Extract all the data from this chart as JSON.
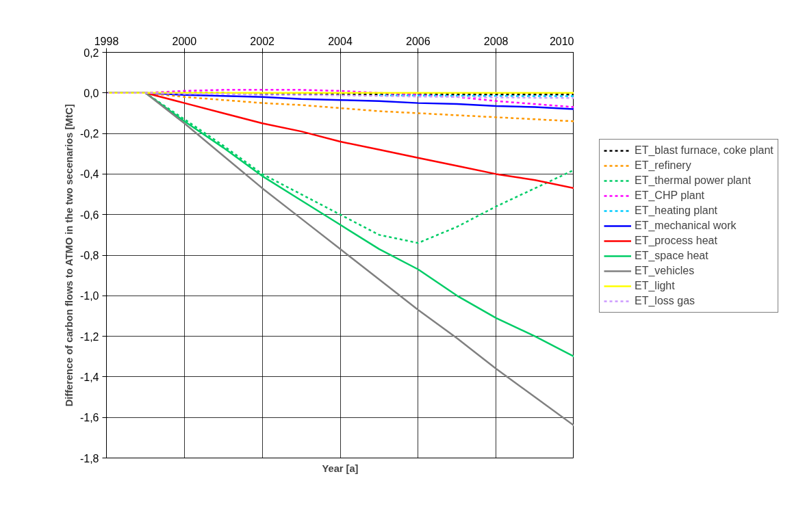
{
  "chart_data": {
    "type": "line",
    "xlabel": "Year [a]",
    "ylabel": "Difference of carbon flows to ATMO in the two secenarios [MtC]",
    "x": [
      1998,
      1999,
      2000,
      2001,
      2002,
      2003,
      2004,
      2005,
      2006,
      2007,
      2008,
      2009,
      2010
    ],
    "xlim": [
      1998,
      2010
    ],
    "xticks": [
      1998,
      2000,
      2002,
      2004,
      2006,
      2008,
      2010
    ],
    "ylim": [
      -1.8,
      0.2
    ],
    "yticks": [
      {
        "value": 0.2,
        "label": "0,2"
      },
      {
        "value": 0,
        "label": "0,0"
      },
      {
        "value": -0.2,
        "label": "-0,2"
      },
      {
        "value": -0.4,
        "label": "-0,4"
      },
      {
        "value": -0.6,
        "label": "-0,6"
      },
      {
        "value": -0.8,
        "label": "-0,8"
      },
      {
        "value": -1.0,
        "label": "-1,0"
      },
      {
        "value": -1.2,
        "label": "-1,2"
      },
      {
        "value": -1.4,
        "label": "-1,4"
      },
      {
        "value": -1.6,
        "label": "-1,6"
      },
      {
        "value": -1.8,
        "label": "-1,8"
      }
    ],
    "grid": true,
    "legend": "right",
    "series": [
      {
        "name": "ET_blast furnace, coke plant",
        "color": "#000000",
        "line_style": "dashed",
        "values": [
          0,
          0,
          0,
          0,
          -0.005,
          -0.005,
          -0.008,
          -0.008,
          -0.008,
          -0.008,
          -0.008,
          -0.008,
          -0.008
        ]
      },
      {
        "name": "ET_refinery",
        "color": "#ff9900",
        "line_style": "dashed",
        "values": [
          0,
          0,
          -0.02,
          -0.035,
          -0.05,
          -0.06,
          -0.075,
          -0.09,
          -0.1,
          -0.11,
          -0.12,
          -0.13,
          -0.14
        ]
      },
      {
        "name": "ET_thermal power plant",
        "color": "#00cc66",
        "line_style": "dashed",
        "values": [
          0,
          0,
          -0.13,
          -0.26,
          -0.4,
          -0.5,
          -0.6,
          -0.7,
          -0.74,
          -0.66,
          -0.56,
          -0.47,
          -0.38
        ]
      },
      {
        "name": "ET_CHP plant",
        "color": "#ff00ff",
        "line_style": "dashed",
        "values": [
          0,
          0,
          0.01,
          0.015,
          0.015,
          0.015,
          0.01,
          0,
          -0.01,
          -0.02,
          -0.04,
          -0.055,
          -0.07
        ]
      },
      {
        "name": "ET_heating plant",
        "color": "#00ccff",
        "line_style": "dashed",
        "values": [
          null,
          null,
          null,
          null,
          null,
          null,
          null,
          -0.012,
          -0.013,
          -0.014,
          -0.015,
          -0.016,
          -0.016
        ]
      },
      {
        "name": "ET_mechanical work",
        "color": "#0000ff",
        "line_style": "solid",
        "values": [
          0,
          0,
          -0.01,
          -0.015,
          -0.02,
          -0.03,
          -0.035,
          -0.04,
          -0.05,
          -0.055,
          -0.065,
          -0.07,
          -0.08
        ]
      },
      {
        "name": "ET_process heat",
        "color": "#ff0000",
        "line_style": "solid",
        "values": [
          0,
          0,
          -0.05,
          -0.1,
          -0.15,
          -0.19,
          -0.24,
          -0.28,
          -0.32,
          -0.36,
          -0.4,
          -0.43,
          -0.47
        ]
      },
      {
        "name": "ET_space heat",
        "color": "#00cc66",
        "line_style": "solid",
        "values": [
          0,
          0,
          -0.14,
          -0.27,
          -0.41,
          -0.53,
          -0.65,
          -0.77,
          -0.87,
          -1.0,
          -1.11,
          -1.2,
          -1.3
        ]
      },
      {
        "name": "ET_vehicles",
        "color": "#808080",
        "line_style": "solid",
        "values": [
          0,
          0,
          -0.15,
          -0.31,
          -0.47,
          -0.62,
          -0.77,
          -0.92,
          -1.07,
          -1.21,
          -1.36,
          -1.5,
          -1.64
        ]
      },
      {
        "name": "ET_light",
        "color": "#ffff00",
        "line_style": "solid",
        "values": [
          0,
          0,
          0,
          0,
          0,
          0,
          0,
          0,
          0,
          0,
          0,
          0,
          0
        ]
      },
      {
        "name": "ET_loss gas",
        "color": "#cc99ff",
        "line_style": "dashed",
        "values": [
          0,
          0,
          -0.005,
          -0.005,
          -0.01,
          -0.01,
          -0.012,
          -0.015,
          -0.018,
          -0.02,
          -0.022,
          -0.024,
          -0.025
        ]
      }
    ]
  }
}
